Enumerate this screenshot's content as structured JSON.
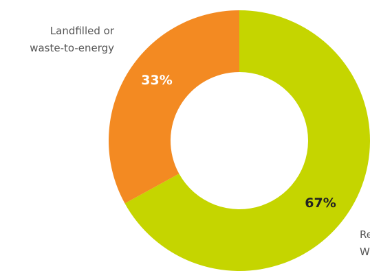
{
  "chart_data": {
    "type": "pie",
    "donut": true,
    "start_angle_deg": 0,
    "direction": "clockwise",
    "slices": [
      {
        "name_lines": [
          "Re",
          "W"
        ],
        "value": 67,
        "label": "67%",
        "color": "#c5d500",
        "label_color": "#222222"
      },
      {
        "name_lines": [
          "Landfilled or",
          "waste-to-energy"
        ],
        "value": 33,
        "label": "33%",
        "color": "#f38a22",
        "label_color": "#ffffff"
      }
    ]
  }
}
